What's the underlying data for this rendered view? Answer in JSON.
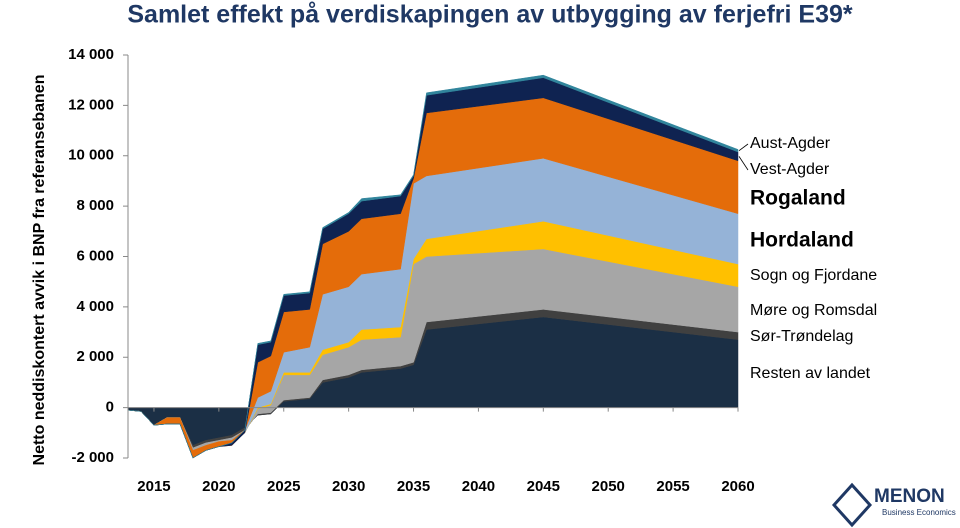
{
  "chart_data": {
    "type": "stacked_area",
    "title": "Samlet effekt på verdiskapingen av utbygging av ferjefri E39*",
    "y_label": "Netto neddiskontert avvik i BNP fra referansebanen",
    "x": [
      2013,
      2014,
      2015,
      2016,
      2017,
      2018,
      2019,
      2020,
      2021,
      2022,
      2023,
      2024,
      2025,
      2027,
      2028,
      2030,
      2031,
      2034,
      2035,
      2036,
      2045,
      2060
    ],
    "xlim": [
      2013,
      2060
    ],
    "xticks": [
      2015,
      2020,
      2025,
      2030,
      2035,
      2040,
      2045,
      2050,
      2055,
      2060
    ],
    "ylim": [
      -2000,
      14000
    ],
    "yticks": [
      {
        "value": -2000,
        "label": "-2 000"
      },
      0,
      {
        "value": 2000,
        "label": "2 000"
      },
      {
        "value": 4000,
        "label": "4 000"
      },
      {
        "value": 6000,
        "label": "6 000"
      },
      {
        "value": 8000,
        "label": "8 000"
      },
      {
        "value": 10000,
        "label": "10 000"
      },
      {
        "value": 12000,
        "label": "12 000"
      },
      {
        "value": 14000,
        "label": "14 000"
      }
    ],
    "series": [
      {
        "name": "Resten av landet",
        "color": "#1b2f45",
        "values": [
          -100,
          -150,
          -700,
          -400,
          -400,
          -1500,
          -1300,
          -1200,
          -1100,
          -800,
          -300,
          -250,
          250,
          350,
          1000,
          1200,
          1400,
          1550,
          1700,
          3100,
          3600,
          2700
        ]
      },
      {
        "name": "Sør-Trøndelag",
        "color": "#404040",
        "values": [
          0,
          0,
          0,
          0,
          0,
          -100,
          -100,
          -100,
          -100,
          -100,
          50,
          50,
          50,
          50,
          100,
          100,
          100,
          100,
          100,
          300,
          300,
          300
        ]
      },
      {
        "name": "Møre og Romsdal",
        "color": "#a6a6a6",
        "values": [
          0,
          0,
          0,
          0,
          0,
          -100,
          -100,
          -50,
          -100,
          -100,
          200,
          300,
          1000,
          900,
          1000,
          1100,
          1200,
          1150,
          3900,
          2600,
          2400,
          1800
        ]
      },
      {
        "name": "Sogn og Fjordane",
        "color": "#ffc000",
        "values": [
          0,
          0,
          0,
          0,
          0,
          0,
          0,
          0,
          0,
          0,
          50,
          50,
          100,
          100,
          200,
          200,
          400,
          400,
          200,
          700,
          1100,
          900
        ]
      },
      {
        "name": "Hordaland",
        "color": "#95b3d7",
        "values": [
          0,
          0,
          0,
          0,
          0,
          0,
          0,
          0,
          0,
          100,
          400,
          500,
          800,
          1000,
          2200,
          2200,
          2200,
          2300,
          3000,
          2500,
          2500,
          2000
        ]
      },
      {
        "name": "Rogaland",
        "color": "#e46c0a",
        "values": [
          0,
          0,
          0,
          -250,
          -250,
          -300,
          -200,
          -200,
          -200,
          -100,
          1400,
          1400,
          1600,
          1500,
          2000,
          2200,
          2200,
          2200,
          200,
          2500,
          2400,
          2100
        ]
      },
      {
        "name": "Vest-Agder",
        "color": "#0f2351",
        "values": [
          0,
          0,
          0,
          0,
          0,
          0,
          0,
          0,
          100,
          100,
          700,
          550,
          650,
          650,
          600,
          700,
          700,
          700,
          100,
          700,
          800,
          350
        ]
      },
      {
        "name": "Aust-Agder",
        "color": "#31859c",
        "values": [
          0,
          0,
          0,
          0,
          0,
          0,
          0,
          0,
          0,
          0,
          50,
          50,
          50,
          50,
          50,
          50,
          100,
          50,
          50,
          100,
          100,
          100
        ]
      }
    ]
  },
  "logo": {
    "name": "MENON",
    "tagline": "Business Economics"
  }
}
